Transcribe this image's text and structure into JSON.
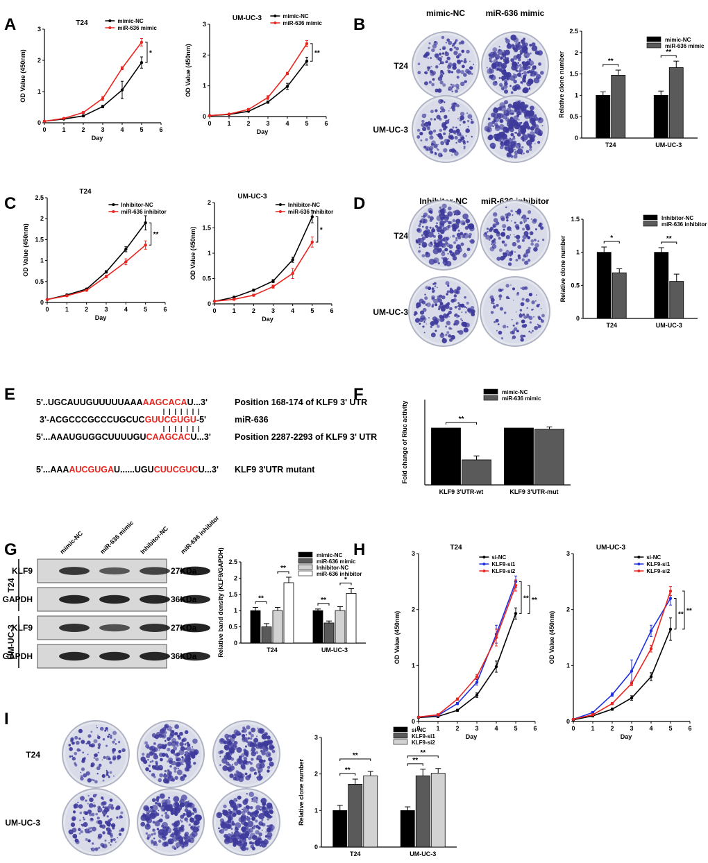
{
  "panels": [
    {
      "id": "A",
      "label": "A"
    },
    {
      "id": "B",
      "label": "B"
    },
    {
      "id": "C",
      "label": "C"
    },
    {
      "id": "D",
      "label": "D"
    },
    {
      "id": "E",
      "label": "E"
    },
    {
      "id": "F",
      "label": "F"
    },
    {
      "id": "G",
      "label": "G"
    },
    {
      "id": "H",
      "label": "H"
    },
    {
      "id": "I",
      "label": "I"
    }
  ],
  "colors": {
    "black": "#000000",
    "red": "#e8261f",
    "blue": "#1f2fe0",
    "dark_gray": "#5a5a5a",
    "light_gray": "#d2d2d2",
    "white": "#ffffff",
    "stain": "#3e3a9c"
  },
  "plates": [
    {
      "panel": "B",
      "cols": [
        "mimic-NC",
        "miR-636 mimic"
      ],
      "rows": [
        "T24",
        "UM-UC-3"
      ],
      "density": [
        [
          0.45,
          0.85
        ],
        [
          0.5,
          0.95
        ]
      ]
    },
    {
      "panel": "D",
      "cols": [
        "Inhibitor-NC",
        "miR-636 inhibitor"
      ],
      "rows": [
        "T24",
        "UM-UC-3"
      ],
      "density": [
        [
          0.85,
          0.5
        ],
        [
          0.6,
          0.3
        ]
      ]
    },
    {
      "panel": "I",
      "cols": [
        "si-NC",
        "KLF9-si1",
        "KLF9-si2"
      ],
      "rows": [
        "T24",
        "UM-UC-3"
      ],
      "density": [
        [
          0.35,
          0.75,
          0.8
        ],
        [
          0.55,
          0.95,
          1.0
        ]
      ]
    }
  ],
  "sequences": [
    {
      "prefix": "5'..UGCAUUGUUUUUAAA",
      "red": "AAGCACA",
      "suffix": "U...3'",
      "desc": "Position 168-174 of KLF9 3' UTR"
    },
    {
      "prefix": "3'-ACGCCCGCCCUGCUC",
      "red": "GUUCGUGU",
      "suffix": "-5'",
      "desc": "miR-636"
    },
    {
      "prefix": "5'...AAAUGUGGCUUUUGU",
      "red": "CAAGCAC",
      "suffix": "U...3'",
      "desc": "Position 2287-2293 of KLF9 3' UTR"
    },
    {
      "prefix": "5'...AAA",
      "red": "AUCGUGA",
      "suffix": "U......UGU",
      "red2": "CUUCGUC",
      "suffix2": "U...3'",
      "desc": "KLF9 3'UTR mutant"
    }
  ],
  "western": {
    "lanes": [
      "mimic-NC",
      "miR-636 mimic",
      "Inhibitor-NC",
      "miR-636 inhibitor"
    ],
    "groups": [
      "T24",
      "UM-UC-3"
    ],
    "proteins": [
      "KLF9",
      "GAPDH"
    ],
    "sizes": [
      "27KDa",
      "36KDa"
    ]
  },
  "chart_data": [
    {
      "panel": "A",
      "type": "line",
      "title": "T24",
      "xlabel": "Day",
      "ylabel": "OD Value (450nm)",
      "xlim": [
        0,
        6
      ],
      "ylim": [
        0,
        3
      ],
      "xticks": [
        0,
        1,
        2,
        3,
        4,
        5,
        6
      ],
      "yticks": [
        0,
        1,
        2,
        3
      ],
      "x": [
        0,
        1,
        2,
        3,
        4,
        5
      ],
      "series": [
        {
          "name": "mimic-NC",
          "color": "#000000",
          "values": [
            0.05,
            0.12,
            0.22,
            0.52,
            1.05,
            1.93
          ],
          "err": [
            0,
            0.02,
            0.03,
            0.04,
            0.28,
            0.18
          ]
        },
        {
          "name": "miR-636 mimic",
          "color": "#e8261f",
          "values": [
            0.05,
            0.14,
            0.33,
            0.78,
            1.75,
            2.58
          ],
          "err": [
            0,
            0.02,
            0.03,
            0.06,
            0.05,
            0.12
          ]
        }
      ],
      "significance": [
        "*"
      ]
    },
    {
      "panel": "A2",
      "type": "line",
      "title": "UM-UC-3",
      "xlabel": "Day",
      "ylabel": "OD Value (450nm)",
      "xlim": [
        0,
        6
      ],
      "ylim": [
        0,
        3
      ],
      "xticks": [
        0,
        1,
        2,
        3,
        4,
        5,
        6
      ],
      "yticks": [
        0,
        1,
        2,
        3
      ],
      "x": [
        0,
        1,
        2,
        3,
        4,
        5
      ],
      "series": [
        {
          "name": "mimic-NC",
          "color": "#000000",
          "values": [
            0.03,
            0.07,
            0.17,
            0.47,
            0.98,
            1.8
          ],
          "err": [
            0,
            0.02,
            0.02,
            0.04,
            0.1,
            0.13
          ]
        },
        {
          "name": "miR-636 mimic",
          "color": "#e8261f",
          "values": [
            0.03,
            0.08,
            0.23,
            0.62,
            1.4,
            2.37
          ],
          "err": [
            0,
            0.02,
            0.03,
            0.06,
            0.04,
            0.1
          ]
        }
      ],
      "significance": [
        "**"
      ]
    },
    {
      "panel": "B",
      "type": "bar",
      "xlabel": "",
      "ylabel": "Relative clone number",
      "ylim": [
        0,
        2.5
      ],
      "yticks": [
        0,
        0.5,
        1.0,
        1.5,
        2.0,
        2.5
      ],
      "categories": [
        "T24",
        "UM-UC-3"
      ],
      "series": [
        {
          "name": "mimic-NC",
          "color": "#000000",
          "values": [
            1.0,
            1.0
          ],
          "err": [
            0.08,
            0.1
          ]
        },
        {
          "name": "miR-636 mimic",
          "color": "#5a5a5a",
          "values": [
            1.47,
            1.65
          ],
          "err": [
            0.12,
            0.15
          ]
        }
      ],
      "significance": [
        "**",
        "**"
      ]
    },
    {
      "panel": "C",
      "type": "line",
      "title": "T24",
      "xlabel": "Day",
      "ylabel": "OD Value (450nm)",
      "xlim": [
        0,
        6
      ],
      "ylim": [
        0,
        2.5
      ],
      "xticks": [
        0,
        1,
        2,
        3,
        4,
        5,
        6
      ],
      "yticks": [
        0,
        0.5,
        1.0,
        1.5,
        2.0,
        2.5
      ],
      "x": [
        0,
        1,
        2,
        3,
        4,
        5
      ],
      "series": [
        {
          "name": "Inhibitor-NC",
          "color": "#000000",
          "values": [
            0.07,
            0.18,
            0.32,
            0.73,
            1.27,
            1.9
          ],
          "err": [
            0,
            0.02,
            0.02,
            0.03,
            0.06,
            0.17
          ]
        },
        {
          "name": "miR-636 inhibitor",
          "color": "#e8261f",
          "values": [
            0.07,
            0.16,
            0.29,
            0.62,
            0.97,
            1.37
          ],
          "err": [
            0,
            0.02,
            0.02,
            0.03,
            0.07,
            0.1
          ]
        }
      ],
      "significance": [
        "**"
      ]
    },
    {
      "panel": "C2",
      "type": "line",
      "title": "UM-UC-3",
      "xlabel": "Day",
      "ylabel": "OD Value (450nm)",
      "xlim": [
        0,
        6
      ],
      "ylim": [
        0,
        2
      ],
      "xticks": [
        0,
        1,
        2,
        3,
        4,
        5,
        6
      ],
      "yticks": [
        0,
        0.5,
        1.0,
        1.5,
        2.0
      ],
      "x": [
        0,
        1,
        2,
        3,
        4,
        5
      ],
      "series": [
        {
          "name": "Inhibitor-NC",
          "color": "#000000",
          "values": [
            0.05,
            0.13,
            0.27,
            0.45,
            0.87,
            1.72
          ],
          "err": [
            0,
            0.02,
            0.02,
            0.03,
            0.05,
            0.12
          ]
        },
        {
          "name": "miR-636 inhibitor",
          "color": "#e8261f",
          "values": [
            0.05,
            0.09,
            0.17,
            0.34,
            0.6,
            1.22
          ],
          "err": [
            0,
            0.02,
            0.02,
            0.03,
            0.1,
            0.1
          ]
        }
      ],
      "significance": [
        "*"
      ]
    },
    {
      "panel": "D",
      "type": "bar",
      "xlabel": "",
      "ylabel": "Relative clone number",
      "ylim": [
        0,
        1.5
      ],
      "yticks": [
        0,
        0.5,
        1.0,
        1.5
      ],
      "categories": [
        "T24",
        "UM-UC-3"
      ],
      "series": [
        {
          "name": "Inhibitor-NC",
          "color": "#000000",
          "values": [
            1.0,
            1.0
          ],
          "err": [
            0.08,
            0.07
          ]
        },
        {
          "name": "miR-636 inhibitor",
          "color": "#5a5a5a",
          "values": [
            0.69,
            0.56
          ],
          "err": [
            0.06,
            0.11
          ]
        }
      ],
      "significance": [
        "*",
        "**"
      ]
    },
    {
      "panel": "F",
      "type": "bar",
      "xlabel": "",
      "ylabel": "Fold change of Rluc activity",
      "ylim": [
        0,
        1.5
      ],
      "yticks": [],
      "categories": [
        "KLF9 3'UTR-wt",
        "KLF9 3'UTR-mut"
      ],
      "series": [
        {
          "name": "mimic-NC",
          "color": "#000000",
          "values": [
            1.0,
            1.0
          ],
          "err": [
            0,
            0
          ]
        },
        {
          "name": "miR-636 mimic",
          "color": "#5a5a5a",
          "values": [
            0.44,
            0.98
          ],
          "err": [
            0.07,
            0.04
          ]
        }
      ],
      "significance": [
        "**",
        ""
      ]
    },
    {
      "panel": "G",
      "type": "bar",
      "xlabel": "",
      "ylabel": "Relative band density (KLF9/GAPDH)",
      "ylim": [
        0,
        2.5
      ],
      "yticks": [
        0,
        0.5,
        1.0,
        1.5,
        2.0,
        2.5
      ],
      "categories": [
        "T24",
        "UM-UC-3"
      ],
      "series": [
        {
          "name": "mimic-NC",
          "color": "#000000",
          "values": [
            1.0,
            1.0
          ],
          "err": [
            0.1,
            0.05
          ]
        },
        {
          "name": "miR-636 mimic",
          "color": "#5a5a5a",
          "values": [
            0.5,
            0.62
          ],
          "err": [
            0.1,
            0.06
          ]
        },
        {
          "name": "Inhibitor-NC",
          "color": "#d2d2d2",
          "values": [
            1.0,
            1.0
          ],
          "err": [
            0.1,
            0.12
          ]
        },
        {
          "name": "miR-636 inhibitor",
          "color": "#ffffff",
          "values": [
            1.86,
            1.53
          ],
          "err": [
            0.17,
            0.15
          ]
        }
      ],
      "significance": [
        "**",
        "**",
        "**",
        "*"
      ]
    },
    {
      "panel": "H",
      "type": "line",
      "title": "T24",
      "xlabel": "Day",
      "ylabel": "OD Value (450nm)",
      "xlim": [
        0,
        6
      ],
      "ylim": [
        0,
        3
      ],
      "xticks": [
        0,
        1,
        2,
        3,
        4,
        5,
        6
      ],
      "yticks": [
        0,
        1,
        2,
        3
      ],
      "x": [
        0,
        1,
        2,
        3,
        4,
        5
      ],
      "series": [
        {
          "name": "si-NC",
          "color": "#000000",
          "values": [
            0.07,
            0.09,
            0.2,
            0.47,
            0.98,
            1.93
          ],
          "err": [
            0,
            0.02,
            0.02,
            0.04,
            0.1,
            0.1
          ]
        },
        {
          "name": "KLF9-si1",
          "color": "#1f2fe0",
          "values": [
            0.08,
            0.11,
            0.32,
            0.7,
            1.56,
            2.5
          ],
          "err": [
            0,
            0.02,
            0.02,
            0.05,
            0.16,
            0.1
          ]
        },
        {
          "name": "KLF9-si2",
          "color": "#e8261f",
          "values": [
            0.08,
            0.12,
            0.4,
            0.8,
            1.5,
            2.43
          ],
          "err": [
            0,
            0.02,
            0.02,
            0.04,
            0.15,
            0.1
          ]
        }
      ],
      "significance": [
        "**",
        "**"
      ]
    },
    {
      "panel": "H2",
      "type": "line",
      "title": "UM-UC-3",
      "xlabel": "Day",
      "ylabel": "OD Value (450nm)",
      "xlim": [
        0,
        6
      ],
      "ylim": [
        0,
        3
      ],
      "xticks": [
        0,
        1,
        2,
        3,
        4,
        5,
        6
      ],
      "yticks": [
        0,
        1,
        2,
        3
      ],
      "x": [
        0,
        1,
        2,
        3,
        4,
        5
      ],
      "series": [
        {
          "name": "si-NC",
          "color": "#000000",
          "values": [
            0.03,
            0.1,
            0.22,
            0.42,
            0.8,
            1.65
          ],
          "err": [
            0,
            0.02,
            0.02,
            0.04,
            0.07,
            0.2
          ]
        },
        {
          "name": "KLF9-si1",
          "color": "#1f2fe0",
          "values": [
            0.04,
            0.16,
            0.48,
            0.9,
            1.62,
            2.2
          ],
          "err": [
            0,
            0.02,
            0.03,
            0.2,
            0.1,
            0.12
          ]
        },
        {
          "name": "KLF9-si2",
          "color": "#e8261f",
          "values": [
            0.04,
            0.12,
            0.32,
            0.68,
            1.3,
            2.33
          ],
          "err": [
            0,
            0.02,
            0.02,
            0.04,
            0.06,
            0.08
          ]
        }
      ],
      "significance": [
        "**",
        "**"
      ]
    },
    {
      "panel": "I",
      "type": "bar",
      "xlabel": "",
      "ylabel": "Relative clone number",
      "ylim": [
        0,
        3
      ],
      "yticks": [
        0,
        1,
        2,
        3
      ],
      "categories": [
        "T24",
        "UM-UC-3"
      ],
      "series": [
        {
          "name": "si-NC",
          "color": "#000000",
          "values": [
            1.0,
            1.0
          ],
          "err": [
            0.14,
            0.1
          ]
        },
        {
          "name": "KLF9-si1",
          "color": "#5a5a5a",
          "values": [
            1.72,
            1.95
          ],
          "err": [
            0.14,
            0.18
          ]
        },
        {
          "name": "KLF9-si2",
          "color": "#d2d2d2",
          "values": [
            1.95,
            2.02
          ],
          "err": [
            0.12,
            0.13
          ]
        }
      ],
      "significance": [
        "**",
        "**",
        "**",
        "**"
      ]
    }
  ]
}
